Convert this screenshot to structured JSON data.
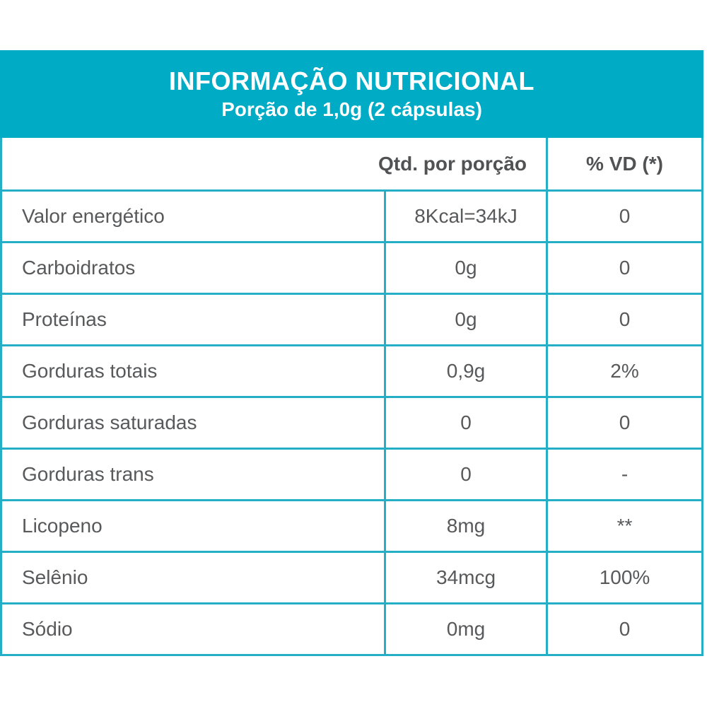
{
  "theme": {
    "banner_bg": "#00abc6",
    "banner_text": "#ffffff",
    "border_color": "#24afc6",
    "text_color": "#58595b"
  },
  "banner": {
    "title": "INFORMAÇÃO NUTRICIONAL",
    "subtitle": "Porção de 1,0g (2 cápsulas)"
  },
  "table": {
    "header": {
      "qty_label": "Qtd. por porção",
      "vd_label": "% VD (*)"
    },
    "rows": [
      {
        "label": "Valor energético",
        "qty": "8Kcal=34kJ",
        "vd": "0"
      },
      {
        "label": "Carboidratos",
        "qty": "0g",
        "vd": "0"
      },
      {
        "label": "Proteínas",
        "qty": "0g",
        "vd": "0"
      },
      {
        "label": "Gorduras totais",
        "qty": "0,9g",
        "vd": "2%"
      },
      {
        "label": "Gorduras saturadas",
        "qty": "0",
        "vd": "0"
      },
      {
        "label": "Gorduras trans",
        "qty": "0",
        "vd": "-"
      },
      {
        "label": "Licopeno",
        "qty": "8mg",
        "vd": "**"
      },
      {
        "label": "Selênio",
        "qty": "34mcg",
        "vd": "100%"
      },
      {
        "label": "Sódio",
        "qty": "0mg",
        "vd": "0"
      }
    ]
  }
}
